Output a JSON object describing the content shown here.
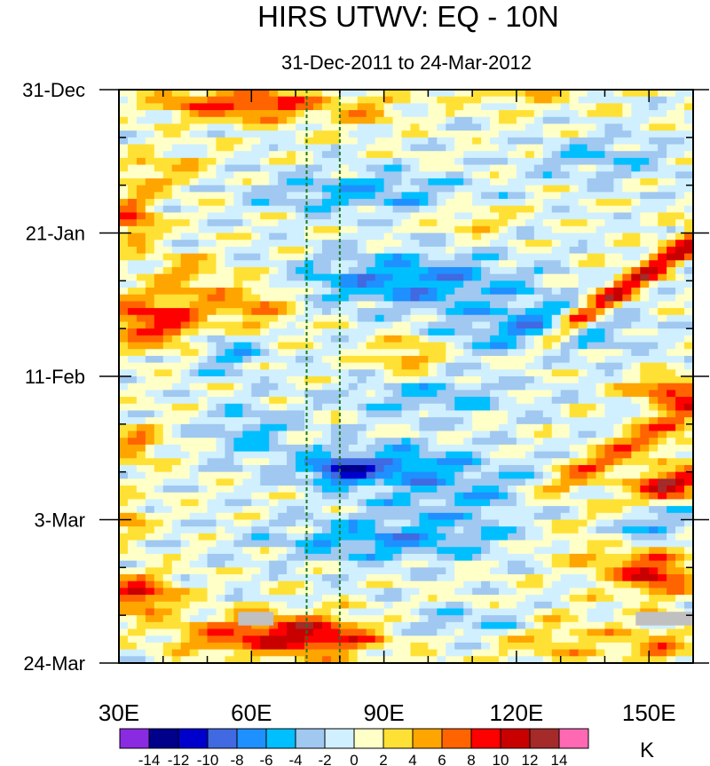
{
  "chart_data": {
    "type": "heatmap",
    "title": "HIRS UTWV: EQ - 10N",
    "subtitle": "31-Dec-2011 to 24-Mar-2012",
    "x_axis": {
      "range": [
        30,
        160
      ],
      "ticks": [
        {
          "value": 30,
          "label": "30E"
        },
        {
          "value": 60,
          "label": "60E"
        },
        {
          "value": 90,
          "label": "90E"
        },
        {
          "value": 120,
          "label": "120E"
        },
        {
          "value": 150,
          "label": "150E"
        }
      ]
    },
    "y_axis": {
      "range_days": [
        0,
        84
      ],
      "ticks": [
        {
          "day": 0,
          "label": "31-Dec"
        },
        {
          "day": 21,
          "label": "21-Jan"
        },
        {
          "day": 42,
          "label": "11-Feb"
        },
        {
          "day": 63,
          "label": "3-Mar"
        },
        {
          "day": 84,
          "label": "24-Mar"
        }
      ]
    },
    "reference_lines_lon": [
      72.5,
      80
    ],
    "colorbar": {
      "unit": "K",
      "levels": [
        -14,
        -12,
        -10,
        -8,
        -6,
        -4,
        -2,
        0,
        2,
        4,
        6,
        8,
        10,
        12,
        14
      ],
      "level_labels": [
        "-14",
        "-12",
        "-10",
        "-8",
        "-6",
        "-4",
        "-2",
        "0",
        "2",
        "4",
        "6",
        "8",
        "10",
        "12",
        "14"
      ],
      "colors": [
        "#8a2be2",
        "#00008b",
        "#0000cd",
        "#4169e1",
        "#1e90ff",
        "#00bfff",
        "#a0c8f0",
        "#d0f0ff",
        "#ffffc8",
        "#ffe135",
        "#ffa500",
        "#ff6400",
        "#ff0000",
        "#c80000",
        "#a52a2a",
        "#ff69b4"
      ]
    },
    "missing_color": "#c0c0c0"
  }
}
